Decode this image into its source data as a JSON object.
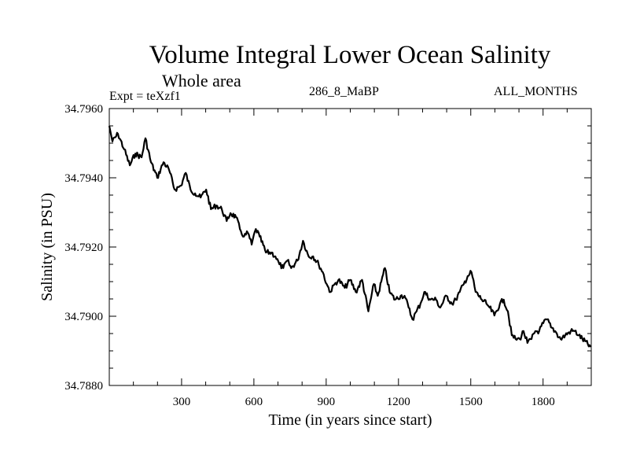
{
  "chart_data": {
    "type": "line",
    "title": "Volume Integral Lower Ocean Salinity",
    "subtitle": "Whole area",
    "annotations": {
      "experiment": "Expt = teXzf1",
      "experiment_code": "286_8_MaBP",
      "period": "ALL_MONTHS"
    },
    "xlabel": "Time (in years since start)",
    "ylabel": "Salinity (in PSU)",
    "xlim": [
      0,
      2000
    ],
    "ylim": [
      34.788,
      34.796
    ],
    "x_ticks": [
      300,
      600,
      900,
      1200,
      1500,
      1800
    ],
    "x_tick_labels": [
      "300",
      "600",
      "900",
      "1200",
      "1500",
      "1800"
    ],
    "y_ticks": [
      34.788,
      34.79,
      34.792,
      34.794,
      34.796
    ],
    "y_tick_labels": [
      "34.7880",
      "34.7900",
      "34.7920",
      "34.7940",
      "34.7960"
    ],
    "grid": false,
    "series": [
      {
        "name": "Salinity",
        "color": "#000000",
        "x": [
          0,
          13,
          36,
          62,
          85,
          108,
          134,
          150,
          173,
          199,
          225,
          248,
          271,
          297,
          317,
          337,
          356,
          379,
          402,
          422,
          444,
          467,
          487,
          503,
          526,
          542,
          559,
          575,
          591,
          608,
          624,
          650,
          673,
          689,
          706,
          722,
          739,
          755,
          781,
          804,
          827,
          846,
          869,
          886,
          902,
          918,
          935,
          951,
          977,
          1000,
          1023,
          1049,
          1075,
          1098,
          1114,
          1144,
          1163,
          1186,
          1209,
          1225,
          1242,
          1258,
          1275,
          1291,
          1307,
          1333,
          1356,
          1373,
          1399,
          1422,
          1438,
          1454,
          1471,
          1487,
          1503,
          1520,
          1546,
          1565,
          1578,
          1598,
          1621,
          1637,
          1654,
          1670,
          1686,
          1703,
          1719,
          1735,
          1752,
          1768,
          1784,
          1801,
          1817,
          1833,
          1850,
          1873,
          1892,
          1915,
          1931,
          1948,
          1997
        ],
        "y": [
          34.7955,
          34.79505,
          34.79527,
          34.79482,
          34.79436,
          34.7947,
          34.79459,
          34.79514,
          34.79445,
          34.794,
          34.79445,
          34.79423,
          34.79366,
          34.79377,
          34.79414,
          34.79366,
          34.79355,
          34.79343,
          34.79366,
          34.79309,
          34.7932,
          34.79309,
          34.79275,
          34.79298,
          34.79286,
          34.79252,
          34.7923,
          34.79241,
          34.79207,
          34.79252,
          34.7923,
          34.79184,
          34.79184,
          34.79173,
          34.7915,
          34.79139,
          34.79161,
          34.79139,
          34.79161,
          34.79218,
          34.79173,
          34.79173,
          34.7915,
          34.79127,
          34.79093,
          34.7907,
          34.79093,
          34.79105,
          34.79082,
          34.79105,
          34.7907,
          34.79105,
          34.79014,
          34.79093,
          34.79059,
          34.79139,
          34.7907,
          34.79048,
          34.79059,
          34.79059,
          34.79025,
          34.78991,
          34.79014,
          34.79036,
          34.7907,
          34.79048,
          34.79048,
          34.79025,
          34.79059,
          34.79036,
          34.79048,
          34.7907,
          34.79093,
          34.79116,
          34.79127,
          34.7907,
          34.79048,
          34.79036,
          34.79025,
          34.79002,
          34.79036,
          34.79048,
          34.79014,
          34.78945,
          34.78934,
          34.78934,
          34.78957,
          34.78923,
          34.78934,
          34.78957,
          34.78957,
          34.7898,
          34.78991,
          34.78968,
          34.78957,
          34.78934,
          34.78945,
          34.78957,
          34.78957,
          34.78945,
          34.78911
        ]
      }
    ]
  }
}
